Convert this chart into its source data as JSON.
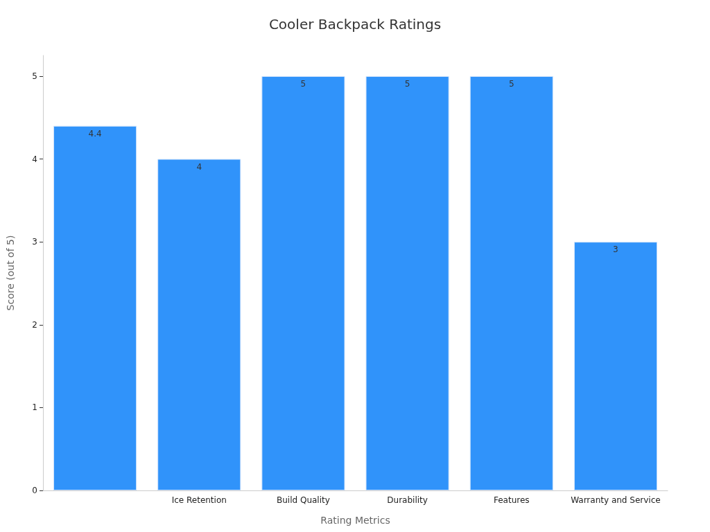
{
  "chart_data": {
    "type": "bar",
    "title": "Cooler Backpack Ratings",
    "xlabel": "Rating Metrics",
    "ylabel": "Score (out of 5)",
    "categories": [
      null,
      "Ice Retention",
      "Build Quality",
      "Durability",
      "Features",
      "Warranty and Service"
    ],
    "values": [
      4.4,
      4,
      5,
      5,
      5,
      3
    ],
    "color": "#3093fa",
    "ylim": [
      0,
      5.25
    ],
    "yticks": [
      0,
      1,
      2,
      3,
      4,
      5
    ],
    "grid": false,
    "data_labels": true
  }
}
